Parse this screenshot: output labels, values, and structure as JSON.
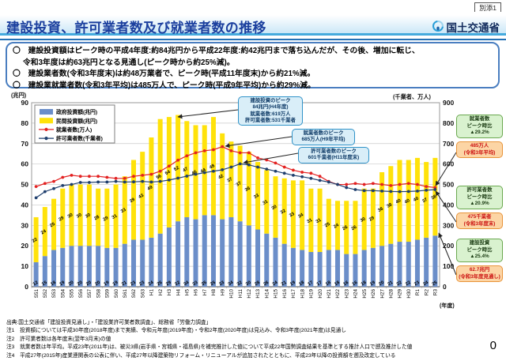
{
  "meta": {
    "attachment_label": "別添1",
    "page_number": "0"
  },
  "header": {
    "title": "建設投資、許可業者数及び就業者数の推移",
    "agency": "国土交通省"
  },
  "summary": {
    "bullet1_line1": "〇　建設投資額はピーク時の平成4年度:約84兆円から平成22年度:約42兆円まで落ち込んだが、その後、増加に転じ、",
    "bullet1_line2": "令和3年度は約63兆円となる見通し(ピーク時から約25%減)。",
    "bullet2": "〇　建設業者数(令和3年度末)は約48万業者で、ピーク時(平成11年度末)から約21%減。",
    "bullet3": "〇　建設業就業者数(令和3年平均)は485万人で、ピーク時(平成9年平均)から約29%減。"
  },
  "chart_data": {
    "type": "bar+line combo (stacked bars, two lines)",
    "categories": [
      "S51",
      "S52",
      "S53",
      "S54",
      "S55",
      "S56",
      "S57",
      "S58",
      "S59",
      "S60",
      "S61",
      "S62",
      "S63",
      "H1",
      "H2",
      "H3",
      "H4",
      "H5",
      "H6",
      "H7",
      "H8",
      "H9",
      "H10",
      "H11",
      "H12",
      "H13",
      "H14",
      "H15",
      "H16",
      "H17",
      "H18",
      "H19",
      "H20",
      "H21",
      "H22",
      "H23",
      "H24",
      "H25",
      "H26",
      "H27",
      "H28",
      "H29",
      "H30",
      "R1",
      "R2",
      "R3"
    ],
    "series": [
      {
        "name": "政府投資額(兆円)",
        "type": "bar",
        "stacked": true,
        "axis": "left",
        "color": "#6b8ec9",
        "values": [
          12,
          15,
          18,
          19,
          20,
          20,
          20,
          20,
          19,
          19,
          21,
          23,
          23,
          24,
          26,
          29,
          32,
          34,
          33,
          35,
          35,
          33,
          34,
          32,
          30,
          28,
          26,
          24,
          21,
          19,
          18,
          17,
          17,
          18,
          18,
          16,
          16,
          18,
          19,
          20,
          21,
          22,
          22,
          23,
          24,
          25
        ]
      },
      {
        "name": "民間投資額(兆円)",
        "type": "bar",
        "stacked": true,
        "axis": "left",
        "color": "#ffe20a",
        "values": [
          22,
          24,
          25,
          29,
          30,
          30,
          30,
          28,
          29,
          31,
          33,
          39,
          43,
          49,
          56,
          54,
          52,
          47,
          46,
          44,
          48,
          42,
          37,
          37,
          36,
          33,
          31,
          30,
          32,
          33,
          34,
          31,
          31,
          25,
          24,
          26,
          26,
          30,
          29,
          36,
          38,
          40,
          40,
          40,
          37,
          38
        ]
      },
      {
        "name": "就業者数(万人)",
        "type": "line",
        "axis": "right",
        "color": "#e32222",
        "values": [
          490,
          505,
          515,
          535,
          545,
          540,
          540,
          540,
          535,
          530,
          530,
          540,
          545,
          550,
          565,
          590,
          619,
          640,
          655,
          665,
          670,
          685,
          665,
          655,
          655,
          630,
          620,
          605,
          585,
          570,
          560,
          555,
          540,
          515,
          500,
          500,
          505,
          500,
          505,
          500,
          495,
          500,
          505,
          500,
          490,
          485
        ]
      },
      {
        "name": "許可業者数(千業者)",
        "type": "line",
        "axis": "right",
        "color": "#1f3f6e",
        "values": [
          435,
          465,
          480,
          495,
          500,
          510,
          510,
          512,
          512,
          515,
          512,
          513,
          515,
          512,
          515,
          522,
          531,
          541,
          550,
          558,
          565,
          572,
          585,
          601,
          596,
          585,
          575,
          565,
          555,
          545,
          538,
          530,
          520,
          512,
          500,
          485,
          475,
          470,
          470,
          468,
          466,
          465,
          466,
          468,
          472,
          475
        ]
      }
    ],
    "left_axis": {
      "label": "(兆円)",
      "min": 0,
      "max": 90,
      "step": 10
    },
    "right_axis": {
      "label": "(千業者、万人)",
      "min": 0,
      "max": 900,
      "step": 100
    },
    "x_axis_label": "(年度)",
    "grid": "horizontal",
    "legend_position": "top-left inside plot",
    "annotations": {
      "investment_peak": {
        "l1": "建設投資のピーク",
        "l2": "84兆円(H4年度)",
        "l3": "就業者数:619万人",
        "l4": "許可業者数:531千業者"
      },
      "employment_peak": {
        "l1": "就業者数のピーク",
        "l2": "685万人(H9年平均)"
      },
      "licensed_peak": {
        "l1": "許可業者数のピーク",
        "l2": "601千業者(H11年度末)"
      },
      "employment_ratio": {
        "l1": "就業者数",
        "l2": "ピーク時比",
        "l3": "▲29.2%"
      },
      "employment_current": {
        "l1": "485万人",
        "l2": "(令和3年平均)"
      },
      "licensed_ratio": {
        "l1": "許可業者数",
        "l2": "ピーク時比",
        "l3": "▲20.9%"
      },
      "licensed_current": {
        "l1": "475千業者",
        "l2": "(令和3年度末)"
      },
      "investment_ratio": {
        "l1": "建設投資",
        "l2": "ピーク時比",
        "l3": "▲25.4%"
      },
      "investment_current": {
        "l1": "62.7兆円",
        "l2": "(令和3年度見通し)"
      }
    }
  },
  "footer": {
    "lines": [
      "出典:国土交通省「建設投資見通し」・「建設業許可業者数調査」、総務省「労働力調査」",
      "注1　投資額については平成30年度(2018年度)まで実績、令和元年度(2019年度)・令和2年度(2020年度)は見込み、令和3年度(2021年度)は見通し",
      "注2　許可業者数は各年度末(翌年3月末)の値",
      "注3　就業者数は年平均。平成23年(2011年)は、被災3県(岩手県・宮城県・福島県)を補完推計した値について平成22年国勢調査結果を基準とする推計人口で遡及推計した値",
      "注4　平成27年(2015年)産業連関表の公表に伴い、平成27年以降建築物リフォーム・リニューアルが追加されたとともに、平成23年以降の投資額を遡及改定している"
    ]
  }
}
